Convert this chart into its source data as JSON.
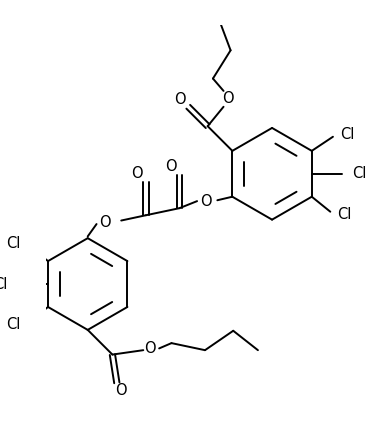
{
  "figsize": [
    3.92,
    4.24
  ],
  "dpi": 100,
  "xlim": [
    0,
    392
  ],
  "ylim": [
    0,
    424
  ],
  "lw": 1.4,
  "font_size": 10.5,
  "font_size_cl": 10.5
}
